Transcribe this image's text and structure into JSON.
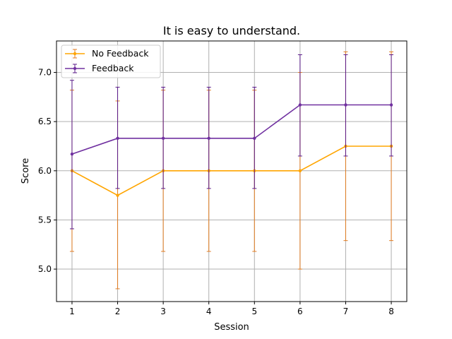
{
  "chart_data": {
    "type": "line",
    "title": "It is easy to understand.",
    "xlabel": "Session",
    "ylabel": "Score",
    "x": [
      1,
      2,
      3,
      4,
      5,
      6,
      7,
      8
    ],
    "xlim": [
      0.66,
      8.34
    ],
    "ylim": [
      4.67,
      7.32
    ],
    "xticks": [
      1,
      2,
      3,
      4,
      5,
      6,
      7,
      8
    ],
    "yticks": [
      5.0,
      5.5,
      6.0,
      6.5,
      7.0
    ],
    "grid": true,
    "legend_position": "upper left",
    "series": [
      {
        "name": "No Feedback",
        "color": "#ffa500",
        "errcolor": "#e07b20",
        "values": [
          6.0,
          5.75,
          6.0,
          6.0,
          6.0,
          6.0,
          6.25,
          6.25
        ],
        "err_low": [
          5.18,
          4.8,
          5.18,
          5.18,
          5.18,
          5.0,
          5.29,
          5.29
        ],
        "err_high": [
          6.82,
          6.71,
          6.82,
          6.82,
          6.82,
          7.0,
          7.21,
          7.21
        ]
      },
      {
        "name": "Feedback",
        "color": "#7030a0",
        "errcolor": "#5a1a8a",
        "values": [
          6.17,
          6.33,
          6.33,
          6.33,
          6.33,
          6.67,
          6.67,
          6.67
        ],
        "err_low": [
          5.41,
          5.82,
          5.82,
          5.82,
          5.82,
          6.15,
          6.15,
          6.15
        ],
        "err_high": [
          6.92,
          6.85,
          6.85,
          6.85,
          6.85,
          7.18,
          7.18,
          7.18
        ]
      }
    ]
  }
}
